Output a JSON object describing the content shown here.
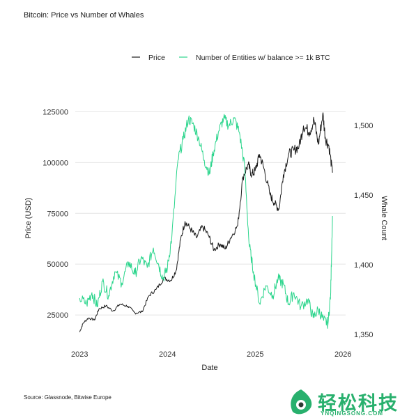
{
  "header": {
    "title": "Bitcoin: Price vs Number of Whales"
  },
  "footer": {
    "source": "Source: Glassnode, Bitwise Europe"
  },
  "watermark": {
    "text": "轻松科技",
    "sub": "YNQINGSONG.COM",
    "color": "#28b06d"
  },
  "chart_data": {
    "type": "line",
    "title": "Bitcoin: Price vs Number of Whales",
    "xlabel": "Date",
    "ylabel": "Price (USD)",
    "y2label": "Whale Count",
    "xlim": [
      2022.95,
      2026.03
    ],
    "ylim": [
      12000,
      132000
    ],
    "y2lim": [
      1345,
      1520
    ],
    "x_ticks": [
      2023,
      2024,
      2025,
      2026
    ],
    "x_tick_labels": [
      "2023",
      "2024",
      "2025",
      "2026"
    ],
    "y_ticks": [
      25000,
      50000,
      75000,
      100000,
      125000
    ],
    "y_tick_labels": [
      "25000",
      "50000",
      "75000",
      "100000",
      "125000"
    ],
    "y2_ticks": [
      1350,
      1400,
      1450,
      1500
    ],
    "y2_tick_labels": [
      "1,350",
      "1,400",
      "1,450",
      "1,500"
    ],
    "grid": "horizontal",
    "legend_position": "top",
    "series": [
      {
        "name": "Price",
        "axis": "left",
        "color": "#1a1a1a",
        "points": [
          [
            2023.0,
            16600
          ],
          [
            2023.04,
            21000
          ],
          [
            2023.1,
            23500
          ],
          [
            2023.17,
            22500
          ],
          [
            2023.22,
            28000
          ],
          [
            2023.3,
            29500
          ],
          [
            2023.38,
            27000
          ],
          [
            2023.46,
            30300
          ],
          [
            2023.55,
            29300
          ],
          [
            2023.63,
            26000
          ],
          [
            2023.71,
            26500
          ],
          [
            2023.79,
            34500
          ],
          [
            2023.87,
            37500
          ],
          [
            2023.96,
            43000
          ],
          [
            2024.04,
            42000
          ],
          [
            2024.1,
            47000
          ],
          [
            2024.15,
            62000
          ],
          [
            2024.2,
            71000
          ],
          [
            2024.26,
            67500
          ],
          [
            2024.33,
            63000
          ],
          [
            2024.4,
            68500
          ],
          [
            2024.47,
            64000
          ],
          [
            2024.53,
            57000
          ],
          [
            2024.6,
            60000
          ],
          [
            2024.66,
            57500
          ],
          [
            2024.72,
            63000
          ],
          [
            2024.8,
            69000
          ],
          [
            2024.86,
            93000
          ],
          [
            2024.92,
            99000
          ],
          [
            2024.96,
            94000
          ],
          [
            2025.0,
            96000
          ],
          [
            2025.05,
            104000
          ],
          [
            2025.1,
            97000
          ],
          [
            2025.17,
            84000
          ],
          [
            2025.22,
            80000
          ],
          [
            2025.27,
            77000
          ],
          [
            2025.32,
            94000
          ],
          [
            2025.38,
            104000
          ],
          [
            2025.44,
            106000
          ],
          [
            2025.5,
            108000
          ],
          [
            2025.55,
            118000
          ],
          [
            2025.62,
            115000
          ],
          [
            2025.67,
            121000
          ],
          [
            2025.72,
            109000
          ],
          [
            2025.77,
            124000
          ],
          [
            2025.8,
            112000
          ],
          [
            2025.84,
            108000
          ],
          [
            2025.88,
            95000
          ]
        ]
      },
      {
        "name": "Number of Entities w/ balance >= 1k BTC",
        "axis": "right",
        "color": "#2bd58c",
        "points": [
          [
            2023.0,
            1376
          ],
          [
            2023.08,
            1372
          ],
          [
            2023.14,
            1380
          ],
          [
            2023.2,
            1370
          ],
          [
            2023.26,
            1388
          ],
          [
            2023.33,
            1378
          ],
          [
            2023.4,
            1395
          ],
          [
            2023.48,
            1387
          ],
          [
            2023.56,
            1402
          ],
          [
            2023.63,
            1393
          ],
          [
            2023.7,
            1405
          ],
          [
            2023.77,
            1398
          ],
          [
            2023.84,
            1412
          ],
          [
            2023.9,
            1400
          ],
          [
            2023.95,
            1390
          ],
          [
            2024.0,
            1398
          ],
          [
            2024.05,
            1420
          ],
          [
            2024.12,
            1475
          ],
          [
            2024.18,
            1490
          ],
          [
            2024.24,
            1505
          ],
          [
            2024.3,
            1500
          ],
          [
            2024.36,
            1490
          ],
          [
            2024.42,
            1475
          ],
          [
            2024.48,
            1465
          ],
          [
            2024.52,
            1480
          ],
          [
            2024.58,
            1495
          ],
          [
            2024.64,
            1505
          ],
          [
            2024.7,
            1500
          ],
          [
            2024.76,
            1505
          ],
          [
            2024.82,
            1495
          ],
          [
            2024.88,
            1470
          ],
          [
            2024.93,
            1415
          ],
          [
            2024.98,
            1395
          ],
          [
            2025.05,
            1372
          ],
          [
            2025.12,
            1385
          ],
          [
            2025.2,
            1378
          ],
          [
            2025.26,
            1390
          ],
          [
            2025.32,
            1386
          ],
          [
            2025.38,
            1372
          ],
          [
            2025.44,
            1380
          ],
          [
            2025.52,
            1370
          ],
          [
            2025.6,
            1375
          ],
          [
            2025.66,
            1362
          ],
          [
            2025.72,
            1368
          ],
          [
            2025.78,
            1360
          ],
          [
            2025.83,
            1358
          ],
          [
            2025.86,
            1380
          ],
          [
            2025.88,
            1435
          ]
        ]
      }
    ]
  }
}
